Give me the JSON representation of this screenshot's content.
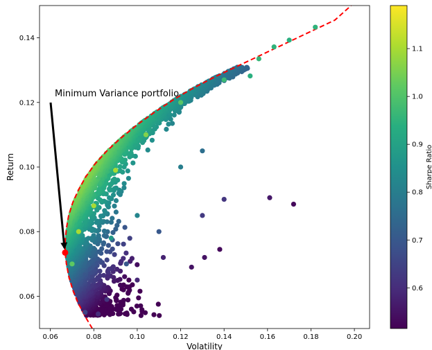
{
  "chart_data": {
    "type": "scatter",
    "title": "",
    "xlabel": "Volatility",
    "ylabel": "Return",
    "xlim": [
      0.055,
      0.207
    ],
    "ylim": [
      0.05,
      0.15
    ],
    "xticks": [
      "0.06",
      "0.08",
      "0.10",
      "0.12",
      "0.14",
      "0.16",
      "0.18",
      "0.20"
    ],
    "yticks": [
      "0.06",
      "0.08",
      "0.10",
      "0.12",
      "0.14"
    ],
    "grid": false,
    "colormap": "viridis",
    "color_variable": "Sharpe Ratio",
    "colorbar": {
      "label": "Sharpe Ratio",
      "range": [
        0.515,
        1.19
      ],
      "ticks": [
        "0.6",
        "0.7",
        "0.8",
        "0.9",
        "1.0",
        "1.1"
      ]
    },
    "annotation": {
      "text": "Minimum Variance portfolio",
      "target": {
        "x": 0.0668,
        "y": 0.0735
      }
    },
    "minimum_variance_point": {
      "x": 0.0668,
      "y": 0.0735,
      "color": "#ff0000"
    },
    "efficient_frontier": {
      "style": "dashed",
      "color": "#ff0000",
      "x": [
        0.0793,
        0.0758,
        0.0727,
        0.0703,
        0.0685,
        0.0674,
        0.0668,
        0.0668,
        0.0674,
        0.0684,
        0.0703,
        0.073,
        0.0763,
        0.0806,
        0.086,
        0.0925,
        0.0998,
        0.108,
        0.117,
        0.126,
        0.136,
        0.147,
        0.158,
        0.169,
        0.18,
        0.191,
        0.1985
      ],
      "y": [
        0.05,
        0.054,
        0.058,
        0.062,
        0.066,
        0.07,
        0.0735,
        0.077,
        0.081,
        0.085,
        0.089,
        0.093,
        0.097,
        0.101,
        0.105,
        0.109,
        0.113,
        0.117,
        0.121,
        0.1245,
        0.128,
        0.1315,
        0.135,
        0.1385,
        0.142,
        0.1455,
        0.15
      ]
    },
    "portfolio_summary_points": [
      {
        "x": 0.182,
        "y": 0.1433,
        "sharpe": 0.95
      },
      {
        "x": 0.17,
        "y": 0.1393,
        "sharpe": 0.94
      },
      {
        "x": 0.163,
        "y": 0.1372,
        "sharpe": 0.95
      },
      {
        "x": 0.156,
        "y": 0.1335,
        "sharpe": 0.96
      },
      {
        "x": 0.152,
        "y": 0.1282,
        "sharpe": 0.94
      },
      {
        "x": 0.172,
        "y": 0.0885,
        "sharpe": 0.53
      },
      {
        "x": 0.161,
        "y": 0.0905,
        "sharpe": 0.56
      },
      {
        "x": 0.138,
        "y": 0.0745,
        "sharpe": 0.53
      },
      {
        "x": 0.131,
        "y": 0.072,
        "sharpe": 0.55
      },
      {
        "x": 0.125,
        "y": 0.069,
        "sharpe": 0.55
      },
      {
        "x": 0.112,
        "y": 0.072,
        "sharpe": 0.58
      },
      {
        "x": 0.1,
        "y": 0.065,
        "sharpe": 0.59
      },
      {
        "x": 0.086,
        "y": 0.059,
        "sharpe": 0.62
      },
      {
        "x": 0.076,
        "y": 0.055,
        "sharpe": 0.65
      },
      {
        "x": 0.082,
        "y": 0.0545,
        "sharpe": 0.6
      },
      {
        "x": 0.07,
        "y": 0.07,
        "sharpe": 1.02
      },
      {
        "x": 0.073,
        "y": 0.08,
        "sharpe": 1.1
      },
      {
        "x": 0.08,
        "y": 0.088,
        "sharpe": 1.1
      },
      {
        "x": 0.09,
        "y": 0.099,
        "sharpe": 1.1
      },
      {
        "x": 0.104,
        "y": 0.11,
        "sharpe": 1.06
      },
      {
        "x": 0.12,
        "y": 0.12,
        "sharpe": 1.01
      },
      {
        "x": 0.14,
        "y": 0.127,
        "sharpe": 0.97
      },
      {
        "x": 0.1,
        "y": 0.085,
        "sharpe": 0.82
      },
      {
        "x": 0.11,
        "y": 0.08,
        "sharpe": 0.7
      },
      {
        "x": 0.13,
        "y": 0.085,
        "sharpe": 0.63
      },
      {
        "x": 0.14,
        "y": 0.09,
        "sharpe": 0.62
      },
      {
        "x": 0.12,
        "y": 0.1,
        "sharpe": 0.8
      },
      {
        "x": 0.13,
        "y": 0.105,
        "sharpe": 0.76
      },
      {
        "x": 0.095,
        "y": 0.07,
        "sharpe": 0.7
      },
      {
        "x": 0.088,
        "y": 0.078,
        "sharpe": 0.88
      }
    ]
  }
}
